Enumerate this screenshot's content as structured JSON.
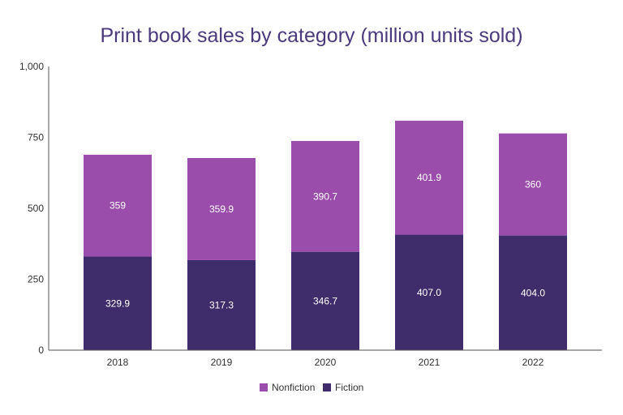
{
  "chart_data": {
    "type": "bar",
    "stacked": true,
    "title": "Print book sales by category (million units sold)",
    "xlabel": "",
    "ylabel": "",
    "categories": [
      "2018",
      "2019",
      "2020",
      "2021",
      "2022"
    ],
    "ylim": [
      0,
      1000
    ],
    "yticks": [
      0,
      250,
      500,
      750,
      1000
    ],
    "ytick_labels": [
      "0",
      "250",
      "500",
      "750",
      "1,000"
    ],
    "grid": false,
    "legend_position": "bottom",
    "series": [
      {
        "name": "Fiction",
        "color": "#3f2d6b",
        "values": [
          329.9,
          317.3,
          346.7,
          407.0,
          404.0
        ],
        "labels": [
          "329.9",
          "317.3",
          "346.7",
          "407.0",
          "404.0"
        ]
      },
      {
        "name": "Nonfiction",
        "color": "#9b4dab",
        "values": [
          359,
          359.9,
          390.7,
          401.9,
          360
        ],
        "labels": [
          "359",
          "359.9",
          "390.7",
          "401.9",
          "360"
        ]
      }
    ],
    "legend": [
      "Nonfiction",
      "Fiction"
    ]
  }
}
